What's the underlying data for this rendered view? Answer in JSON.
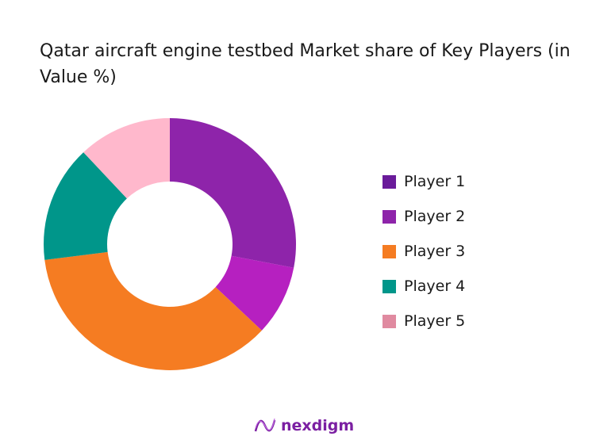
{
  "chart_data": {
    "type": "pie",
    "donut": true,
    "title": "Qatar aircraft engine testbed Market share of Key Players (in Value %)",
    "categories": [
      "Player 1",
      "Player 2",
      "Player 3",
      "Player 4",
      "Player 5"
    ],
    "values": [
      28,
      9,
      36,
      15,
      12
    ],
    "slice_colors": [
      "#8e24aa",
      "#b620c0",
      "#f57c22",
      "#00968a",
      "#ffb8cc"
    ],
    "legend_colors": [
      "#6a1b9a",
      "#8e24aa",
      "#f57c22",
      "#00968a",
      "#e08aa0"
    ],
    "legend_position": "right"
  },
  "brand": {
    "name": "nexdigm",
    "color": "#7b1fa2"
  }
}
